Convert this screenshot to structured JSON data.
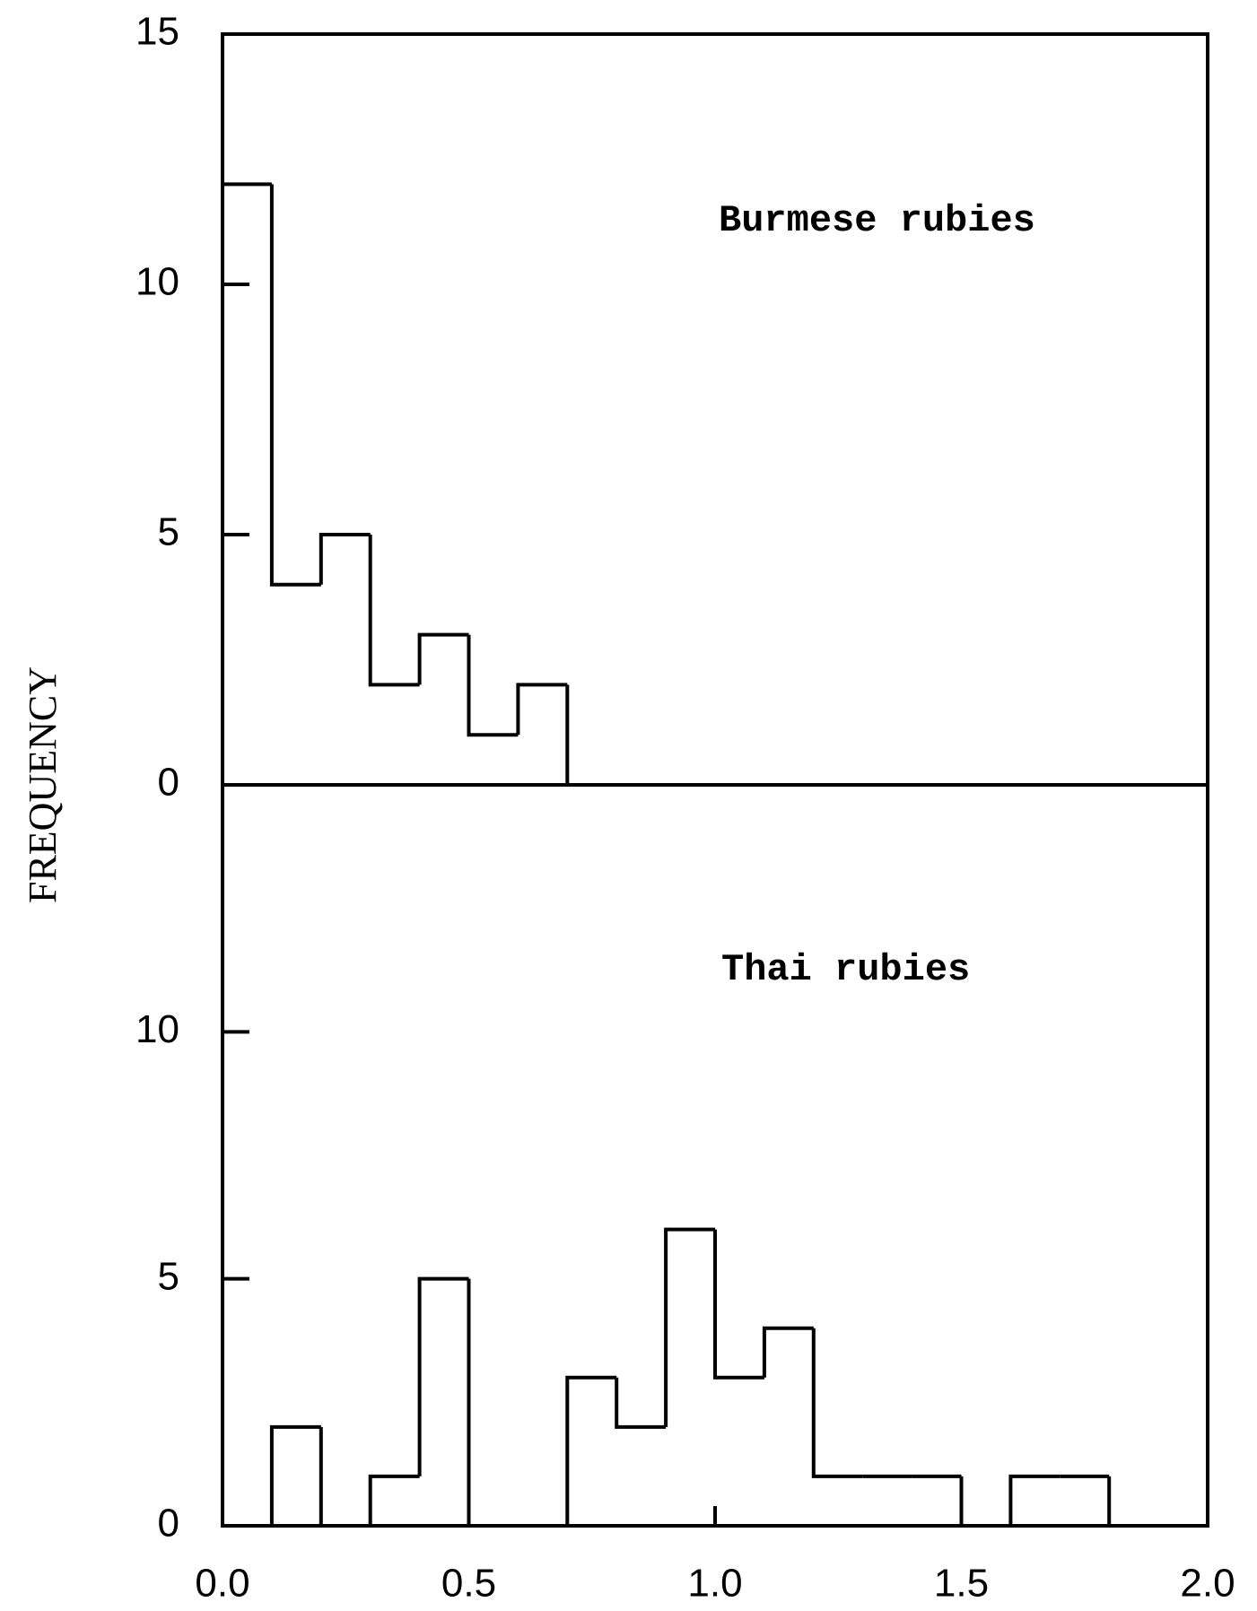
{
  "chart_data": [
    {
      "type": "histogram",
      "annotation": "Burmese rubies",
      "ylabel": "FREQUENCY",
      "bins": [
        0.0,
        0.1,
        0.2,
        0.3,
        0.4,
        0.5,
        0.6,
        0.7,
        0.8,
        0.9,
        1.0,
        1.1,
        1.2,
        1.3,
        1.4,
        1.5,
        1.6,
        1.7,
        1.8,
        1.9,
        2.0
      ],
      "values": [
        12,
        4,
        5,
        2,
        3,
        1,
        2,
        0,
        0,
        0,
        0,
        0,
        0,
        0,
        0,
        0,
        0,
        0,
        0,
        0
      ],
      "color": "#000000",
      "xlim": [
        0,
        2
      ],
      "ylim": [
        0,
        15
      ],
      "yticks": [
        0,
        5,
        10,
        15
      ]
    },
    {
      "type": "histogram",
      "annotation": "Thai rubies",
      "bins": [
        0.0,
        0.1,
        0.2,
        0.3,
        0.4,
        0.5,
        0.6,
        0.7,
        0.8,
        0.9,
        1.0,
        1.1,
        1.2,
        1.3,
        1.4,
        1.5,
        1.6,
        1.7,
        1.8,
        1.9,
        2.0
      ],
      "values": [
        0,
        2,
        0,
        1,
        5,
        0,
        0,
        3,
        2,
        6,
        3,
        4,
        1,
        1,
        1,
        0,
        1,
        1,
        0,
        0
      ],
      "color": "#000000",
      "xlim": [
        0,
        2
      ],
      "ylim": [
        0,
        15
      ],
      "yticks": [
        0,
        5,
        10
      ],
      "xticks": [
        {
          "value": 0,
          "label": "0.0"
        },
        0.5,
        {
          "value": 1,
          "label": "1.0"
        },
        1.5,
        {
          "value": 2,
          "label": "2.0"
        }
      ]
    }
  ]
}
